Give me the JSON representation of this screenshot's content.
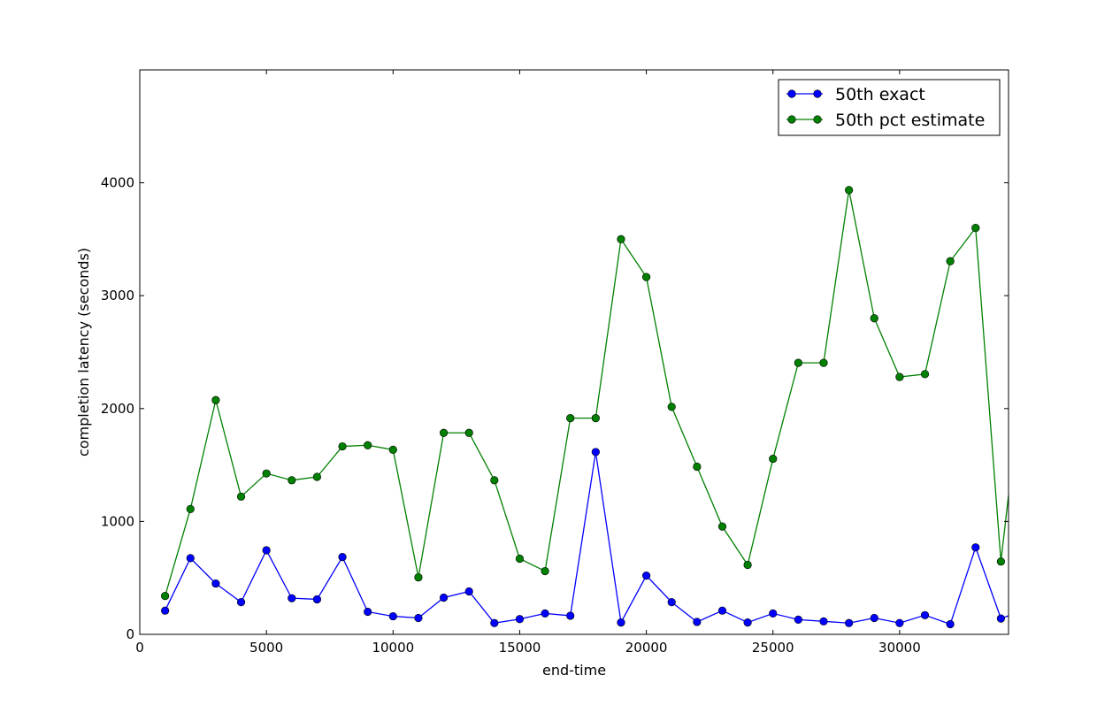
{
  "chart_data": {
    "type": "line",
    "title": "",
    "xlabel": "end-time",
    "ylabel": "completion latency (seconds)",
    "xlim": [
      0,
      34300
    ],
    "ylim": [
      0,
      5000
    ],
    "x_ticks": [
      0,
      5000,
      10000,
      15000,
      20000,
      25000,
      30000
    ],
    "y_ticks": [
      0,
      1000,
      2000,
      3000,
      4000
    ],
    "grid": false,
    "legend_position": "top-right",
    "x": [
      1000,
      2000,
      3000,
      4000,
      5000,
      6000,
      7000,
      8000,
      9000,
      10000,
      11000,
      12000,
      13000,
      14000,
      15000,
      16000,
      17000,
      18000,
      19000,
      20000,
      21000,
      22000,
      23000,
      24000,
      25000,
      26000,
      27000,
      28000,
      29000,
      30000,
      31000,
      32000,
      33000,
      34000,
      35000
    ],
    "series": [
      {
        "name": "50th exact",
        "color": "#0000ff",
        "values": [
          210,
          675,
          450,
          285,
          745,
          320,
          310,
          685,
          200,
          160,
          145,
          325,
          380,
          100,
          135,
          185,
          165,
          1615,
          105,
          520,
          285,
          110,
          210,
          105,
          185,
          130,
          115,
          100,
          145,
          100,
          170,
          90,
          770,
          140,
          220
        ]
      },
      {
        "name": "50th pct estimate",
        "color": "#008000",
        "values": [
          340,
          1110,
          2075,
          1220,
          1425,
          1365,
          1395,
          1665,
          1675,
          1635,
          505,
          1785,
          1785,
          1365,
          670,
          560,
          1915,
          1915,
          3500,
          3165,
          2015,
          1485,
          955,
          615,
          1555,
          2405,
          2405,
          3935,
          2800,
          2280,
          2305,
          3305,
          3600,
          645,
          2600
        ]
      }
    ]
  }
}
